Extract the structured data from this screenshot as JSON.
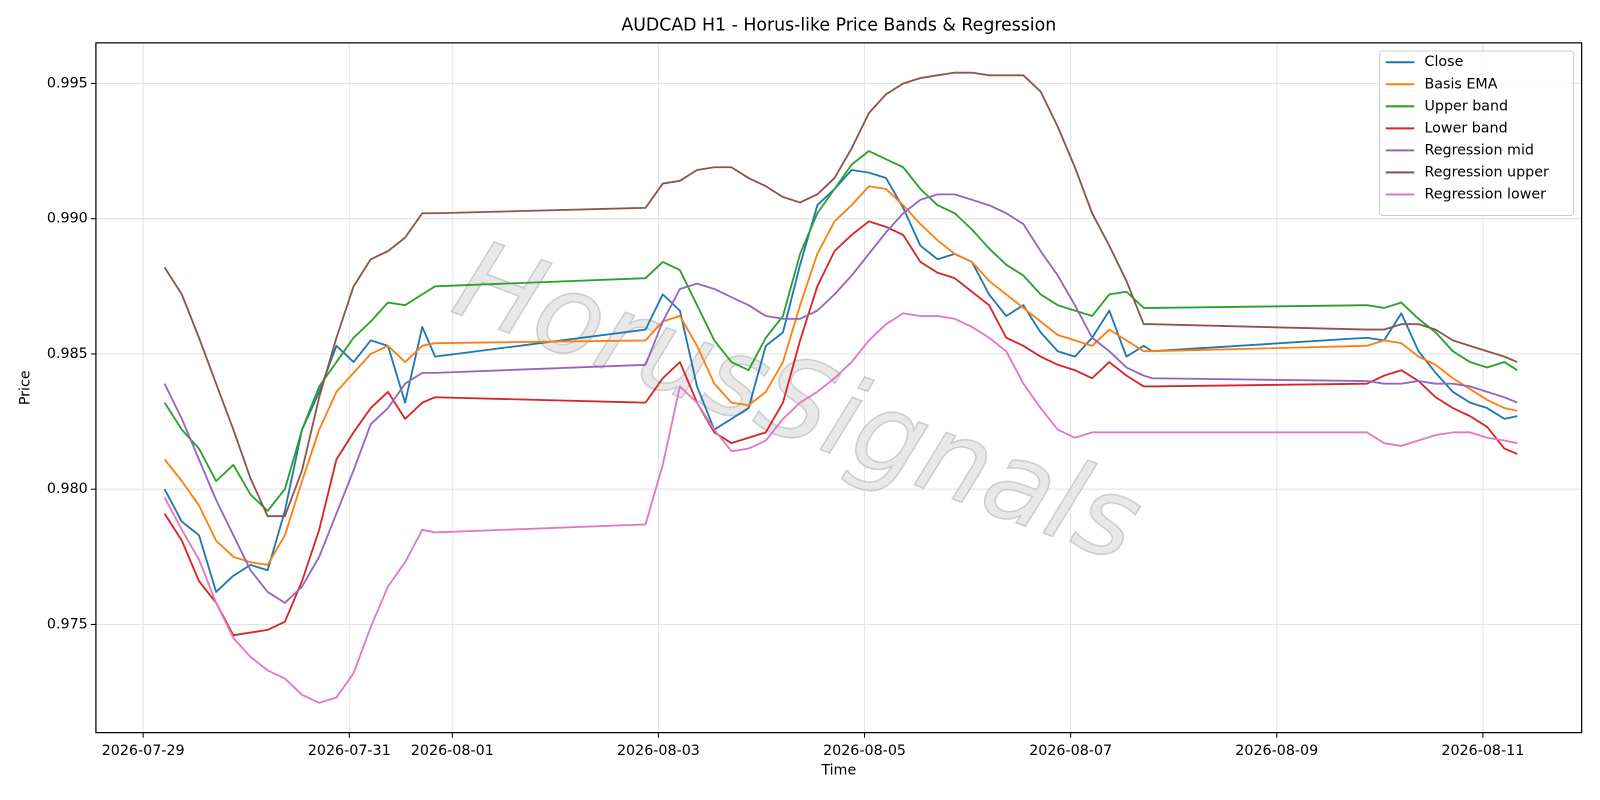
{
  "chart_data": {
    "type": "line",
    "title": "AUDCAD H1 - Horus-like Price Bands & Regression",
    "x_label": "Time",
    "y_label": "Price",
    "watermark": "HorusSignals",
    "x": [
      "2026-07-29 05:00",
      "2026-07-29 09:00",
      "2026-07-29 13:00",
      "2026-07-29 17:00",
      "2026-07-29 21:00",
      "2026-07-30 01:00",
      "2026-07-30 05:00",
      "2026-07-30 09:00",
      "2026-07-30 13:00",
      "2026-07-30 17:00",
      "2026-07-30 21:00",
      "2026-07-31 01:00",
      "2026-07-31 05:00",
      "2026-07-31 09:00",
      "2026-07-31 13:00",
      "2026-07-31 17:00",
      "2026-07-31 20:00",
      "2026-08-02 21:00",
      "2026-08-03 01:00",
      "2026-08-03 05:00",
      "2026-08-03 09:00",
      "2026-08-03 13:00",
      "2026-08-03 17:00",
      "2026-08-03 21:00",
      "2026-08-04 01:00",
      "2026-08-04 05:00",
      "2026-08-04 09:00",
      "2026-08-04 13:00",
      "2026-08-04 17:00",
      "2026-08-04 21:00",
      "2026-08-05 01:00",
      "2026-08-05 05:00",
      "2026-08-05 09:00",
      "2026-08-05 13:00",
      "2026-08-05 17:00",
      "2026-08-05 21:00",
      "2026-08-06 01:00",
      "2026-08-06 05:00",
      "2026-08-06 09:00",
      "2026-08-06 13:00",
      "2026-08-06 17:00",
      "2026-08-06 21:00",
      "2026-08-07 01:00",
      "2026-08-07 05:00",
      "2026-08-07 09:00",
      "2026-08-07 13:00",
      "2026-08-07 17:00",
      "2026-08-07 19:00",
      "2026-08-09 21:00",
      "2026-08-10 01:00",
      "2026-08-10 05:00",
      "2026-08-10 09:00",
      "2026-08-10 13:00",
      "2026-08-10 17:00",
      "2026-08-10 21:00",
      "2026-08-11 01:00",
      "2026-08-11 05:00",
      "2026-08-11 08:00"
    ],
    "series": [
      {
        "name": "Close",
        "color": "#1f77b4",
        "values": [
          0.98,
          0.9788,
          0.9783,
          0.9762,
          0.9768,
          0.9772,
          0.977,
          0.9792,
          0.9822,
          0.9836,
          0.9853,
          0.9847,
          0.9855,
          0.9853,
          0.9832,
          0.986,
          0.9849,
          0.9859,
          0.9872,
          0.9866,
          0.9838,
          0.9822,
          0.9826,
          0.983,
          0.9853,
          0.9858,
          0.9883,
          0.9905,
          0.9911,
          0.9918,
          0.9917,
          0.9915,
          0.9904,
          0.989,
          0.9885,
          0.9887,
          0.9884,
          0.9872,
          0.9864,
          0.9868,
          0.9858,
          0.9851,
          0.9849,
          0.9856,
          0.9866,
          0.9849,
          0.9853,
          0.9851,
          0.9856,
          0.9855,
          0.9865,
          0.9851,
          0.9843,
          0.9836,
          0.9832,
          0.983,
          0.9826,
          0.9827
        ]
      },
      {
        "name": "Basis EMA",
        "color": "#ff7f0e",
        "values": [
          0.9811,
          0.9803,
          0.9794,
          0.9781,
          0.9775,
          0.9773,
          0.9772,
          0.9783,
          0.9803,
          0.9822,
          0.9836,
          0.9843,
          0.985,
          0.9853,
          0.9847,
          0.9853,
          0.9854,
          0.9855,
          0.9862,
          0.9864,
          0.9853,
          0.9839,
          0.9832,
          0.9831,
          0.9836,
          0.9847,
          0.9868,
          0.9887,
          0.9899,
          0.9905,
          0.9912,
          0.9911,
          0.9905,
          0.9898,
          0.9892,
          0.9887,
          0.9884,
          0.9877,
          0.9872,
          0.9867,
          0.9862,
          0.9857,
          0.9855,
          0.9853,
          0.9859,
          0.9855,
          0.9851,
          0.9851,
          0.9853,
          0.9855,
          0.9854,
          0.9849,
          0.9846,
          0.9841,
          0.9837,
          0.9833,
          0.983,
          0.9829
        ]
      },
      {
        "name": "Upper band",
        "color": "#2ca02c",
        "values": [
          0.9832,
          0.9822,
          0.9815,
          0.9803,
          0.9809,
          0.9798,
          0.9792,
          0.98,
          0.9822,
          0.9838,
          0.9847,
          0.9856,
          0.9862,
          0.9869,
          0.9868,
          0.9872,
          0.9875,
          0.9878,
          0.9884,
          0.9881,
          0.9868,
          0.9855,
          0.9847,
          0.9844,
          0.9856,
          0.9864,
          0.9887,
          0.9902,
          0.9911,
          0.992,
          0.9925,
          0.9922,
          0.9919,
          0.9911,
          0.9905,
          0.9902,
          0.9896,
          0.9889,
          0.9883,
          0.9879,
          0.9872,
          0.9868,
          0.9866,
          0.9864,
          0.9872,
          0.9873,
          0.9867,
          0.9867,
          0.9868,
          0.9867,
          0.9869,
          0.9863,
          0.9858,
          0.9851,
          0.9847,
          0.9845,
          0.9847,
          0.9844
        ]
      },
      {
        "name": "Lower band",
        "color": "#d62728",
        "values": [
          0.9791,
          0.9781,
          0.9766,
          0.9758,
          0.9746,
          0.9747,
          0.9748,
          0.9751,
          0.9766,
          0.9785,
          0.9811,
          0.9821,
          0.983,
          0.9836,
          0.9826,
          0.9832,
          0.9834,
          0.9832,
          0.9841,
          0.9847,
          0.9832,
          0.9821,
          0.9817,
          0.9819,
          0.9821,
          0.9832,
          0.9855,
          0.9875,
          0.9888,
          0.9894,
          0.9899,
          0.9897,
          0.9894,
          0.9884,
          0.988,
          0.9878,
          0.9873,
          0.9868,
          0.9856,
          0.9853,
          0.9849,
          0.9846,
          0.9844,
          0.9841,
          0.9847,
          0.9842,
          0.9838,
          0.9838,
          0.9839,
          0.9842,
          0.9844,
          0.984,
          0.9834,
          0.983,
          0.9827,
          0.9823,
          0.9815,
          0.9813
        ]
      },
      {
        "name": "Regression mid",
        "color": "#9467bd",
        "values": [
          0.9839,
          0.9826,
          0.9811,
          0.9796,
          0.9783,
          0.977,
          0.9762,
          0.9758,
          0.9764,
          0.9775,
          0.9791,
          0.9807,
          0.9824,
          0.983,
          0.9839,
          0.9843,
          0.9843,
          0.9846,
          0.9862,
          0.9874,
          0.9876,
          0.9874,
          0.9871,
          0.9868,
          0.9864,
          0.9863,
          0.9863,
          0.9866,
          0.9872,
          0.9879,
          0.9887,
          0.9895,
          0.9902,
          0.9907,
          0.9909,
          0.9909,
          0.9907,
          0.9905,
          0.9902,
          0.9898,
          0.9888,
          0.9879,
          0.9868,
          0.9856,
          0.9851,
          0.9845,
          0.9842,
          0.9841,
          0.984,
          0.9839,
          0.9839,
          0.984,
          0.9839,
          0.9839,
          0.9838,
          0.9836,
          0.9834,
          0.9832
        ]
      },
      {
        "name": "Regression upper",
        "color": "#8c564b",
        "values": [
          0.9882,
          0.9872,
          0.9856,
          0.9839,
          0.9822,
          0.9804,
          0.979,
          0.979,
          0.9807,
          0.9834,
          0.9856,
          0.9875,
          0.9885,
          0.9888,
          0.9893,
          0.9902,
          0.9902,
          0.9904,
          0.9913,
          0.9914,
          0.9918,
          0.9919,
          0.9919,
          0.9915,
          0.9912,
          0.9908,
          0.9906,
          0.9909,
          0.9915,
          0.9926,
          0.9939,
          0.9946,
          0.995,
          0.9952,
          0.9953,
          0.9954,
          0.9954,
          0.9953,
          0.9953,
          0.9953,
          0.9947,
          0.9934,
          0.9919,
          0.9902,
          0.989,
          0.9877,
          0.9861,
          0.9861,
          0.9859,
          0.9859,
          0.9861,
          0.9861,
          0.9859,
          0.9855,
          0.9853,
          0.9851,
          0.9849,
          0.9847
        ]
      },
      {
        "name": "Regression lower",
        "color": "#e377c2",
        "values": [
          0.9797,
          0.9785,
          0.9774,
          0.9758,
          0.9745,
          0.9738,
          0.9733,
          0.973,
          0.9724,
          0.9721,
          0.9723,
          0.9732,
          0.9749,
          0.9764,
          0.9773,
          0.9785,
          0.9784,
          0.9787,
          0.9809,
          0.9838,
          0.9832,
          0.9822,
          0.9814,
          0.9815,
          0.9818,
          0.9826,
          0.9832,
          0.9836,
          0.9841,
          0.9847,
          0.9855,
          0.9861,
          0.9865,
          0.9864,
          0.9864,
          0.9863,
          0.986,
          0.9856,
          0.9851,
          0.9839,
          0.983,
          0.9822,
          0.9819,
          0.9821,
          0.9821,
          0.9821,
          0.9821,
          0.9821,
          0.9821,
          0.9817,
          0.9816,
          0.9818,
          0.982,
          0.9821,
          0.9821,
          0.9819,
          0.9818,
          0.9817
        ]
      }
    ],
    "xlim": [
      "2026-07-28 13:00",
      "2026-08-11 23:00"
    ],
    "xticks": [
      {
        "value": "2026-07-29 00:00",
        "label": "2026-07-29"
      },
      {
        "value": "2026-07-31 00:00",
        "label": "2026-07-31"
      },
      {
        "value": "2026-08-01 00:00",
        "label": "2026-08-01"
      },
      {
        "value": "2026-08-03 00:00",
        "label": "2026-08-03"
      },
      {
        "value": "2026-08-05 00:00",
        "label": "2026-08-05"
      },
      {
        "value": "2026-08-07 00:00",
        "label": "2026-08-07"
      },
      {
        "value": "2026-08-09 00:00",
        "label": "2026-08-09"
      },
      {
        "value": "2026-08-11 00:00",
        "label": "2026-08-11"
      }
    ],
    "ylim": [
      0.971,
      0.9965
    ],
    "yticks": [
      0.975,
      {
        "value": 0.98,
        "label": "0.980"
      },
      0.985,
      {
        "value": 0.99,
        "label": "0.990"
      },
      0.995
    ],
    "grid": true,
    "legend": "upper right"
  }
}
